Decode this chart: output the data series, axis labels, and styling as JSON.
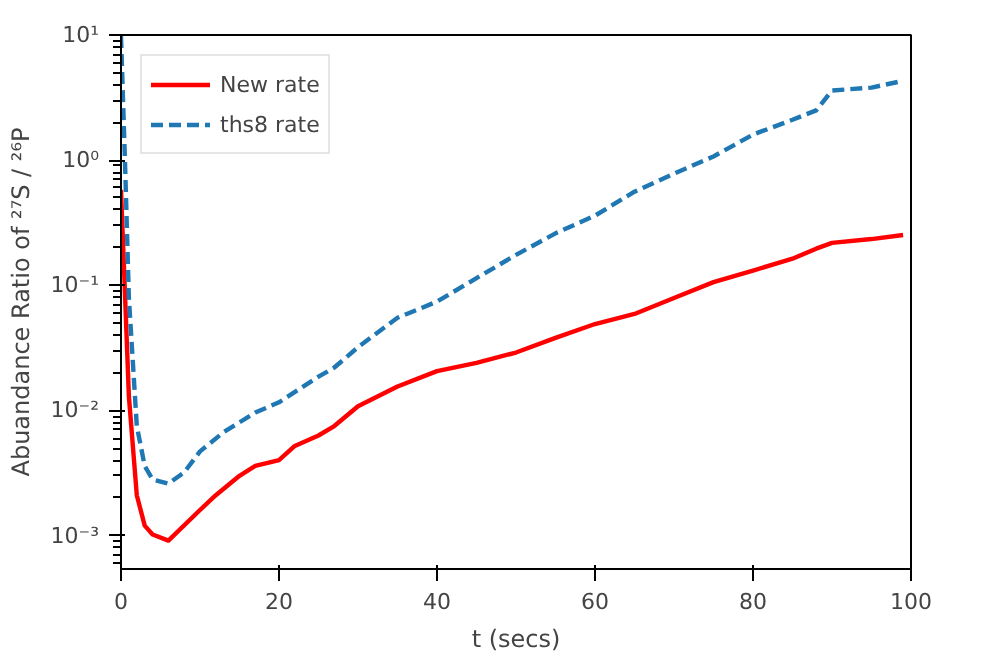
{
  "chart_data": {
    "type": "line",
    "xlabel": "t (secs)",
    "ylabel": "Abuandance Ratio of ²⁷S / ²⁶P",
    "log": "y",
    "grid": false,
    "legend": "top left",
    "xlim": [
      0,
      100
    ],
    "xticks": [
      0,
      20,
      40,
      60,
      80,
      100
    ],
    "ylim": [
      0.00054,
      10
    ],
    "yticks": [
      {
        "value": 0.001,
        "label": "10⁻³"
      },
      {
        "value": 0.01,
        "label": "10⁻²"
      },
      {
        "value": 0.1,
        "label": "10⁻¹"
      },
      {
        "value": 1,
        "label": "10⁰"
      },
      {
        "value": 10,
        "label": "10¹"
      }
    ],
    "series": [
      {
        "name": "New rate",
        "color": "#ff0000",
        "line_style": "solid",
        "x": [
          0,
          1,
          2,
          3,
          4,
          6,
          10,
          12,
          15,
          17,
          20,
          22,
          25,
          27,
          30,
          35,
          40,
          45,
          50,
          55,
          60,
          65,
          70,
          75,
          80,
          85,
          88,
          90,
          95,
          99
        ],
        "values": [
          0.58,
          0.0129,
          0.0021,
          0.0012,
          0.00102,
          0.00091,
          0.0016,
          0.0021,
          0.003,
          0.0036,
          0.004,
          0.0052,
          0.0063,
          0.0075,
          0.0108,
          0.0155,
          0.0206,
          0.024,
          0.029,
          0.038,
          0.049,
          0.059,
          0.079,
          0.106,
          0.131,
          0.163,
          0.196,
          0.218,
          0.234,
          0.252
        ]
      },
      {
        "name": "ths8 rate",
        "color": "#1f77b4",
        "line_style": "dashed",
        "x": [
          0,
          0.5,
          1,
          2,
          3,
          4,
          6,
          8,
          10,
          13,
          17,
          20,
          25,
          27,
          30,
          35,
          40,
          45,
          50,
          55,
          60,
          65,
          70,
          75,
          80,
          85,
          88,
          90,
          95,
          99
        ],
        "values": [
          9.8,
          1.0,
          0.079,
          0.0075,
          0.0036,
          0.0028,
          0.0026,
          0.0032,
          0.0047,
          0.0067,
          0.0096,
          0.0116,
          0.0186,
          0.022,
          0.032,
          0.055,
          0.074,
          0.114,
          0.175,
          0.26,
          0.36,
          0.56,
          0.78,
          1.07,
          1.6,
          2.1,
          2.5,
          3.6,
          3.8,
          4.3
        ]
      }
    ]
  }
}
